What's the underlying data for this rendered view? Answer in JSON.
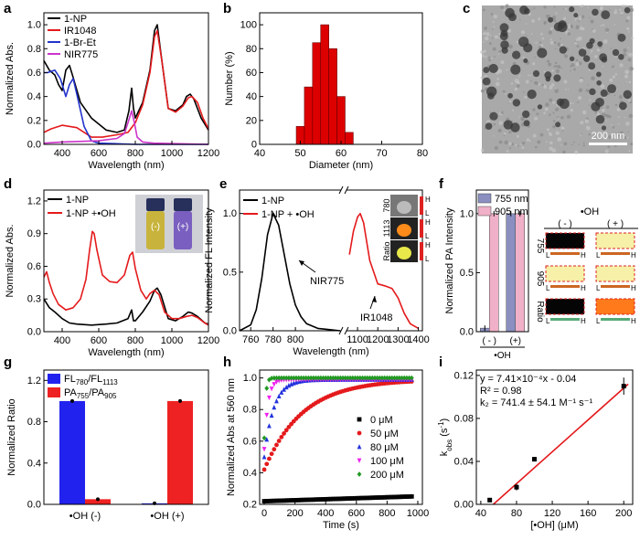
{
  "panels": [
    {
      "id": "a",
      "letter": "a",
      "type": "line",
      "xlabel": "Wavelength (nm)",
      "ylabel": "Normalized Abs.",
      "xlim": [
        300,
        1200
      ],
      "ylim": [
        0,
        1.1
      ],
      "xticks": [
        400,
        600,
        800,
        1000,
        1200
      ],
      "yticks": [
        0.0,
        0.2,
        0.4,
        0.6,
        0.8,
        1.0
      ],
      "legend": [
        "1-NP",
        "IR1048",
        "1-Br-Et",
        "NIR775"
      ],
      "series": [
        {
          "name": "1-NP",
          "color": "#000000",
          "x": [
            300,
            330,
            360,
            380,
            400,
            420,
            440,
            460,
            500,
            560,
            640,
            700,
            740,
            765,
            780,
            790,
            800,
            840,
            880,
            905,
            920,
            940,
            980,
            1020,
            1060,
            1080,
            1100,
            1120,
            1160,
            1200
          ],
          "y": [
            0.7,
            0.62,
            0.58,
            0.5,
            0.45,
            0.62,
            0.66,
            0.56,
            0.35,
            0.22,
            0.12,
            0.1,
            0.12,
            0.28,
            0.47,
            0.3,
            0.22,
            0.35,
            0.62,
            0.95,
            1.0,
            0.76,
            0.3,
            0.28,
            0.33,
            0.4,
            0.42,
            0.38,
            0.22,
            0.12
          ]
        },
        {
          "name": "IR1048",
          "color": "#e41a1c",
          "x": [
            300,
            340,
            400,
            480,
            560,
            620,
            700,
            760,
            800,
            840,
            880,
            905,
            920,
            945,
            980,
            1020,
            1060,
            1090,
            1110,
            1140,
            1170,
            1200
          ],
          "y": [
            0.1,
            0.13,
            0.16,
            0.14,
            0.06,
            0.06,
            0.08,
            0.1,
            0.18,
            0.33,
            0.6,
            0.9,
            0.95,
            0.7,
            0.3,
            0.27,
            0.32,
            0.39,
            0.4,
            0.35,
            0.22,
            0.13
          ]
        },
        {
          "name": "1-Br-Et",
          "color": "#2233cc",
          "x": [
            300,
            320,
            360,
            390,
            420,
            440,
            460,
            480,
            520,
            560,
            600,
            800,
            1200
          ],
          "y": [
            0.6,
            0.6,
            0.62,
            0.55,
            0.4,
            0.5,
            0.55,
            0.42,
            0.15,
            0.03,
            0.01,
            0.0,
            0.0
          ]
        },
        {
          "name": "NIR775",
          "color": "#cc33cc",
          "x": [
            300,
            400,
            600,
            700,
            740,
            760,
            780,
            795,
            810,
            840,
            900,
            1200
          ],
          "y": [
            0.01,
            0.02,
            0.03,
            0.05,
            0.09,
            0.18,
            0.28,
            0.18,
            0.06,
            0.02,
            0.01,
            0.0
          ]
        }
      ]
    },
    {
      "id": "b",
      "letter": "b",
      "type": "bar",
      "xlabel": "Diameter (nm)",
      "ylabel": "Number (%)",
      "xlim": [
        40,
        80
      ],
      "ylim": [
        0,
        110
      ],
      "xticks": [
        40,
        50,
        60,
        70,
        80
      ],
      "yticks": [
        0,
        20,
        40,
        60,
        80,
        100
      ],
      "bar_color": "#dd0000",
      "x": [
        50,
        52,
        54,
        56,
        58,
        60,
        62
      ],
      "values": [
        15,
        48,
        85,
        100,
        80,
        40,
        10
      ]
    },
    {
      "id": "c",
      "letter": "c",
      "type": "image",
      "scale_text": "200 nm"
    },
    {
      "id": "d",
      "letter": "d",
      "type": "line",
      "xlabel": "Wavelength (nm)",
      "ylabel": "Normalized Abs.",
      "xlim": [
        300,
        1200
      ],
      "ylim": [
        0,
        1.3
      ],
      "xticks": [
        400,
        600,
        800,
        1000,
        1200
      ],
      "yticks": [
        0.0,
        0.3,
        0.6,
        0.9,
        1.2
      ],
      "legend": [
        "1-NP",
        "1-NP +•OH"
      ],
      "inset_labels": [
        "(-)",
        "(+)"
      ],
      "series": [
        {
          "name": "1-NP",
          "color": "#000000",
          "x": [
            300,
            330,
            360,
            400,
            440,
            480,
            560,
            640,
            700,
            760,
            780,
            790,
            800,
            840,
            880,
            905,
            920,
            940,
            980,
            1020,
            1060,
            1090,
            1110,
            1140,
            1180,
            1200
          ],
          "y": [
            0.3,
            0.22,
            0.18,
            0.12,
            0.08,
            0.07,
            0.06,
            0.07,
            0.08,
            0.12,
            0.2,
            0.1,
            0.1,
            0.18,
            0.28,
            0.38,
            0.4,
            0.34,
            0.12,
            0.1,
            0.14,
            0.18,
            0.17,
            0.14,
            0.08,
            0.07
          ]
        },
        {
          "name": "1-NP +•OH",
          "color": "#e41a1c",
          "x": [
            300,
            315,
            330,
            350,
            380,
            420,
            460,
            500,
            530,
            550,
            565,
            575,
            590,
            620,
            660,
            700,
            740,
            770,
            785,
            800,
            830,
            860,
            880,
            905,
            930,
            960,
            1000,
            1040,
            1080,
            1110,
            1140,
            1180,
            1200
          ],
          "y": [
            0.5,
            0.55,
            0.45,
            0.35,
            0.25,
            0.2,
            0.22,
            0.3,
            0.48,
            0.75,
            0.92,
            0.9,
            0.75,
            0.52,
            0.46,
            0.45,
            0.52,
            0.7,
            0.73,
            0.58,
            0.38,
            0.3,
            0.35,
            0.38,
            0.34,
            0.18,
            0.12,
            0.12,
            0.14,
            0.15,
            0.13,
            0.08,
            0.06
          ]
        }
      ]
    },
    {
      "id": "e",
      "letter": "e",
      "type": "line-broken",
      "xlabel": "Wavelength (nm)",
      "ylabel": "Normalized FL Intensity",
      "seg1_xlim": [
        750,
        840
      ],
      "seg2_xlim": [
        1050,
        1420
      ],
      "ylim": [
        0,
        1.2
      ],
      "xticks_seg1": [
        760,
        780,
        800
      ],
      "xticks_seg2": [
        1100,
        1200,
        1300,
        1400
      ],
      "yticks": [
        0.0,
        0.5,
        1.0
      ],
      "legend": [
        "1-NP",
        "1-NP + •OH"
      ],
      "annotations": [
        "NIR775",
        "IR1048"
      ],
      "inset_row_labels": [
        "780",
        "1113",
        "Ratio"
      ],
      "inset_scale_labels": [
        "H",
        "L"
      ],
      "series": [
        {
          "name": "1-NP",
          "color": "#000000",
          "seg": 1,
          "x": [
            750,
            760,
            765,
            770,
            775,
            780,
            785,
            790,
            795,
            800,
            805,
            810,
            820,
            830,
            840
          ],
          "y": [
            0.0,
            0.05,
            0.18,
            0.45,
            0.82,
            1.0,
            0.9,
            0.65,
            0.4,
            0.22,
            0.12,
            0.06,
            0.02,
            0.01,
            0.0
          ]
        },
        {
          "name": "1-NP + •OH",
          "color": "#e41a1c",
          "seg": 2,
          "x": [
            1060,
            1080,
            1100,
            1113,
            1130,
            1160,
            1200,
            1240,
            1270,
            1300,
            1330,
            1360,
            1400
          ],
          "y": [
            0.65,
            0.85,
            0.97,
            1.0,
            0.92,
            0.6,
            0.4,
            0.38,
            0.36,
            0.28,
            0.15,
            0.06,
            0.02
          ]
        }
      ]
    },
    {
      "id": "f",
      "letter": "f",
      "type": "bar",
      "ylabel": "Normalized PA Intensity",
      "xlabel": "•OH",
      "ylim": [
        0,
        1.2
      ],
      "yticks": [
        0.0,
        0.5,
        1.0
      ],
      "categories": [
        "( - )",
        "(+)"
      ],
      "series": [
        {
          "name": "755 nm",
          "color": "#8a8fc0",
          "values": [
            0.03,
            1.0
          ]
        },
        {
          "name": "905 nm",
          "color": "#f0b0c8",
          "values": [
            1.0,
            1.0
          ]
        }
      ],
      "map_title": "•OH",
      "map_cols": [
        "( - )",
        "( + )"
      ],
      "map_rows": [
        "755",
        "905",
        "Ratio"
      ],
      "map_scale": [
        "L",
        "H"
      ]
    },
    {
      "id": "g",
      "letter": "g",
      "type": "bar",
      "ylabel": "Normalized Ratio",
      "ylim": [
        0,
        1.3
      ],
      "yticks": [
        0.0,
        0.4,
        0.8,
        1.2
      ],
      "categories": [
        "•OH (-)",
        "•OH (+)"
      ],
      "series": [
        {
          "name": "FL780/FL1113",
          "color": "#2222ee",
          "values": [
            1.0,
            0.01
          ]
        },
        {
          "name": "PA755/PA905",
          "color": "#ee2222",
          "values": [
            0.05,
            1.0
          ]
        }
      ],
      "legend_labels": [
        [
          "FL",
          "780",
          "/FL",
          "1113"
        ],
        [
          "PA",
          "755",
          "/PA",
          "905"
        ]
      ]
    },
    {
      "id": "h",
      "letter": "h",
      "type": "scatter",
      "xlabel": "Time (s)",
      "ylabel": "Normalized Abs at 560 nm",
      "xlim": [
        -30,
        1030
      ],
      "ylim": [
        0.2,
        1.05
      ],
      "xticks": [
        0,
        200,
        400,
        600,
        800,
        1000
      ],
      "yticks": [
        0.2,
        0.4,
        0.6,
        0.8,
        1.0
      ],
      "series": [
        {
          "name": "0 μM",
          "color": "#000000",
          "marker": "square",
          "k": 0.0,
          "start": 0.22,
          "end": 0.25
        },
        {
          "name": "50 μM",
          "color": "#e41a1c",
          "marker": "circle",
          "k": 0.004,
          "start": 0.42,
          "end": 0.99
        },
        {
          "name": "80 μM",
          "color": "#2233dd",
          "marker": "triangle",
          "k": 0.016,
          "start": 0.5,
          "end": 0.99
        },
        {
          "name": "100 μM",
          "color": "#ee22ee",
          "marker": "triangle-down",
          "k": 0.042,
          "start": 0.55,
          "end": 0.99
        },
        {
          "name": "200 μM",
          "color": "#229922",
          "marker": "diamond",
          "k": 0.11,
          "start": 0.62,
          "end": 1.0
        }
      ]
    },
    {
      "id": "i",
      "letter": "i",
      "type": "scatter-fit",
      "xlabel": "[•OH] (μM)",
      "ylabel_parts": [
        "k",
        "obs",
        " (s",
        "-1",
        ")"
      ],
      "xlim": [
        35,
        210
      ],
      "ylim": [
        0.0,
        0.125
      ],
      "xticks": [
        40,
        80,
        120,
        160,
        200
      ],
      "yticks": [
        0.0,
        0.04,
        0.08,
        0.12
      ],
      "x": [
        50,
        80,
        100,
        200
      ],
      "y": [
        0.004,
        0.016,
        0.042,
        0.11
      ],
      "err": [
        0.002,
        0.003,
        0.002,
        0.008
      ],
      "fit": {
        "slope": 0.000741,
        "intercept": -0.04
      },
      "eq_line1": "y = 7.41×10⁻⁴x - 0.04",
      "eq_line2": "R² = 0.98",
      "eq_line3": "k₂ = 741.4 ± 54.1 M⁻¹ s⁻¹",
      "line_color": "#e41a1c"
    }
  ]
}
